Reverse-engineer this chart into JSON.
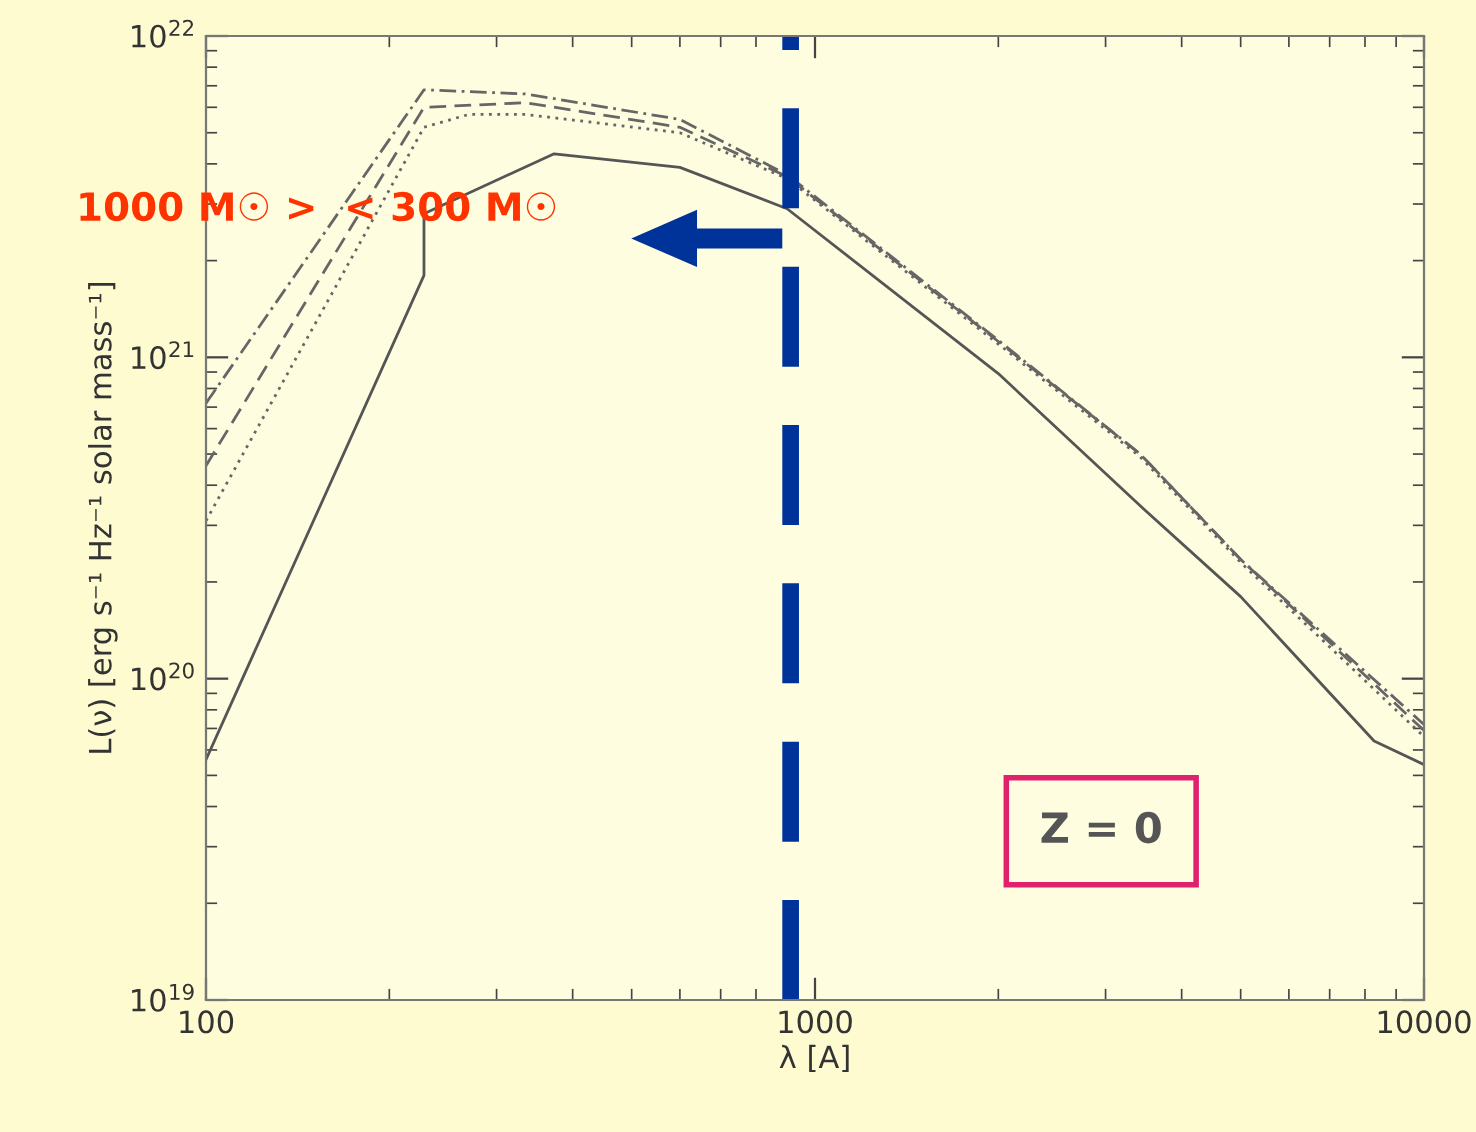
{
  "chart_data": {
    "type": "line",
    "xlabel": "λ [A]",
    "ylabel": "L(ν) [erg s⁻¹ Hz⁻¹ solar mass⁻¹]",
    "log": "xy",
    "xlim": [
      100,
      10000
    ],
    "ylim": [
      1e+19,
      1e+22
    ],
    "xticks": [
      100,
      1000,
      10000
    ],
    "yticks": [
      {
        "value": 1e+19,
        "label": "10$^{19}$"
      },
      {
        "value": 1e+20,
        "label": "10$^{20}$"
      },
      {
        "value": 1e+21,
        "label": "10$^{21}$"
      },
      {
        "value": 1e+22,
        "label": "10$^{22}$"
      }
    ],
    "grid": false,
    "legend": false,
    "marker": "none",
    "series": [
      {
        "color": "#555555",
        "line_style": "solid",
        "x": [
          100,
          228,
          228,
          373,
          600,
          900,
          2000,
          3420,
          5000,
          8280,
          10000
        ],
        "values": [
          5.6e+19,
          1.8e+21,
          2.8e+21,
          4.3e+21,
          3.9e+21,
          2.9e+21,
          8.9e+20,
          3.45e+20,
          1.8e+20,
          6.4e+19,
          5.4e+19
        ]
      },
      {
        "color": "#666666",
        "line_style": "dotted",
        "x": [
          100,
          228,
          270,
          335,
          600,
          900,
          2000,
          3420,
          5000,
          10000
        ],
        "values": [
          3.1e+20,
          5.2e+21,
          5.7e+21,
          5.7e+21,
          5e+21,
          3.6e+21,
          1.1e+21,
          4.9e+20,
          2.3e+20,
          6.6e+19
        ]
      },
      {
        "color": "#666666",
        "line_style": "dashed",
        "x": [
          100,
          228,
          335,
          600,
          900,
          2000,
          3420,
          5000,
          10000
        ],
        "values": [
          4.6e+20,
          6e+21,
          6.2e+21,
          5.2e+21,
          3.65e+21,
          1.12e+21,
          5e+20,
          2.35e+20,
          6.9e+19
        ]
      },
      {
        "color": "#666666",
        "line_style": "dashdot",
        "x": [
          100,
          228,
          335,
          600,
          900,
          2000,
          3420,
          5000,
          10000
        ],
        "values": [
          7.2e+20,
          6.8e+21,
          6.6e+21,
          5.5e+21,
          3.7e+21,
          1.13e+21,
          5e+20,
          2.35e+20,
          7.2e+19
        ]
      }
    ],
    "ref_lines": [
      {
        "axis": "x",
        "value": 912,
        "color": "#003399",
        "line_style": "dashed"
      }
    ],
    "annotations": [
      "1000 M☉ >",
      "< 300 M☉",
      "Z = 0"
    ]
  }
}
